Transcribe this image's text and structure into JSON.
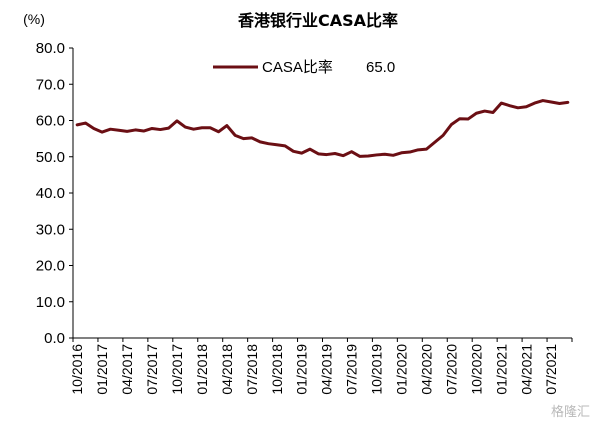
{
  "chart_data": {
    "type": "line",
    "title": "香港银行业CASA比率",
    "ylabel": "(%)",
    "ylim": [
      0,
      80
    ],
    "yticks": [
      "0.0",
      "10.0",
      "20.0",
      "30.0",
      "40.0",
      "50.0",
      "60.0",
      "70.0",
      "80.0"
    ],
    "xticks": [
      "10/2016",
      "01/2017",
      "04/2017",
      "07/2017",
      "10/2017",
      "01/2018",
      "04/2018",
      "07/2018",
      "10/2018",
      "01/2019",
      "04/2019",
      "07/2019",
      "10/2019",
      "01/2020",
      "04/2020",
      "07/2020",
      "10/2020",
      "01/2021",
      "04/2021",
      "07/2021"
    ],
    "grid": false,
    "legend_position": "top-center",
    "series": [
      {
        "name": "CASA比率",
        "latest_label": "65.0",
        "color": "#6b0f14",
        "values": [
          58.8,
          59.3,
          57.8,
          56.8,
          57.6,
          57.3,
          57.0,
          57.4,
          57.1,
          57.8,
          57.5,
          57.9,
          59.9,
          58.2,
          57.6,
          58.0,
          58.0,
          56.9,
          58.6,
          55.9,
          55.0,
          55.2,
          54.1,
          53.6,
          53.3,
          53.0,
          51.5,
          51.0,
          52.1,
          50.8,
          50.6,
          50.9,
          50.3,
          51.4,
          50.1,
          50.2,
          50.5,
          50.7,
          50.4,
          51.1,
          51.3,
          51.9,
          52.1,
          54.0,
          55.9,
          58.9,
          60.5,
          60.4,
          62.0,
          62.6,
          62.2,
          64.8,
          64.1,
          63.5,
          63.8,
          64.8,
          65.5,
          65.1,
          64.7,
          65.0
        ]
      }
    ]
  },
  "watermark": "格隆汇"
}
